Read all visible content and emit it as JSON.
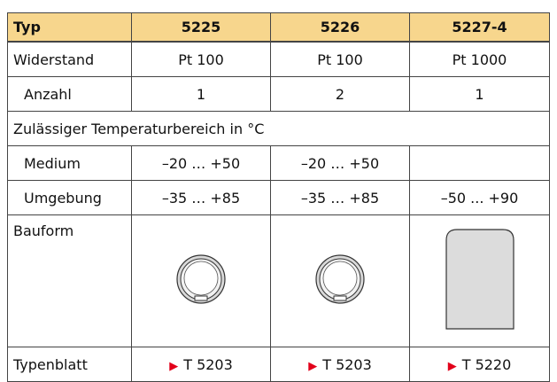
{
  "header": [
    "Typ",
    "5225",
    "5226",
    "5227-4"
  ],
  "rows": [
    [
      "Widerstand",
      "Pt 100",
      "Pt 100",
      "Pt 1000"
    ],
    [
      "Anzahl",
      "1",
      "2",
      "1"
    ],
    [
      "Zulässiger Temperaturbereich in °C"
    ],
    [
      "Medium",
      "–20 … +50",
      "–20 … +50"
    ],
    [
      "Umgebung",
      "–35 … +85",
      "–35 … +85",
      "–50 ... +90"
    ],
    [
      "Bauform"
    ],
    [
      "Typenblatt",
      "T 5203",
      "T 5203",
      "T 5220"
    ]
  ]
}
